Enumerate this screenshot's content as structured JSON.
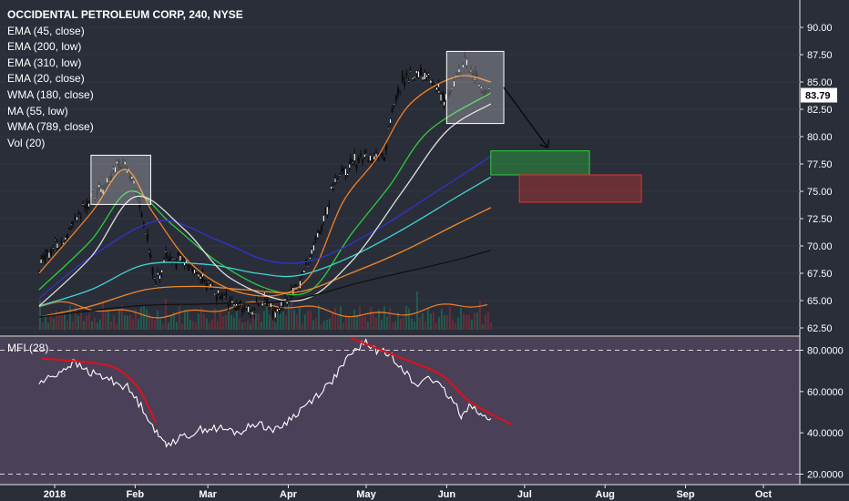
{
  "chart_data": [
    {
      "type": "candlestick",
      "title": "OCCIDENTAL PETROLEUM CORP, 240, NYSE",
      "indicators": [
        "EMA (45, close)",
        "EMA (200, low)",
        "EMA (310, low)",
        "EMA (20, close)",
        "WMA (180, close)",
        "MA (55, low)",
        "WMA (789, close)",
        "Vol (20)"
      ],
      "ylim": [
        62.5,
        92
      ],
      "yticks": [
        "90.00",
        "87.50",
        "85.00",
        "82.50",
        "80.00",
        "77.50",
        "75.00",
        "72.50",
        "70.00",
        "67.50",
        "65.00",
        "62.50"
      ],
      "last_price": "83.79",
      "x_labels": [
        "2018",
        "Feb",
        "Mar",
        "Apr",
        "May",
        "Jun",
        "Jul",
        "Aug",
        "Sep",
        "Oct"
      ],
      "price_path": [
        [
          "2017-12-26",
          68.3
        ],
        [
          "2018-01-02",
          70.2
        ],
        [
          "2018-01-08",
          72.0
        ],
        [
          "2018-01-15",
          74.5
        ],
        [
          "2018-01-22",
          76.0
        ],
        [
          "2018-01-25",
          77.8
        ],
        [
          "2018-01-30",
          76.8
        ],
        [
          "2018-02-02",
          74.5
        ],
        [
          "2018-02-05",
          71.5
        ],
        [
          "2018-02-07",
          69.0
        ],
        [
          "2018-02-09",
          66.5
        ],
        [
          "2018-02-13",
          69.0
        ],
        [
          "2018-02-20",
          68.5
        ],
        [
          "2018-02-27",
          67.0
        ],
        [
          "2018-03-05",
          65.5
        ],
        [
          "2018-03-12",
          64.5
        ],
        [
          "2018-03-19",
          64.0
        ],
        [
          "2018-03-23",
          65.5
        ],
        [
          "2018-03-27",
          63.5
        ],
        [
          "2018-03-30",
          65.3
        ],
        [
          "2018-04-04",
          66.0
        ],
        [
          "2018-04-10",
          69.5
        ],
        [
          "2018-04-16",
          73.5
        ],
        [
          "2018-04-20",
          76.5
        ],
        [
          "2018-04-25",
          77.5
        ],
        [
          "2018-05-01",
          78.0
        ],
        [
          "2018-05-08",
          78.0
        ],
        [
          "2018-05-11",
          82.5
        ],
        [
          "2018-05-15",
          85.0
        ],
        [
          "2018-05-22",
          85.8
        ],
        [
          "2018-05-29",
          84.5
        ],
        [
          "2018-05-31",
          83.0
        ],
        [
          "2018-06-05",
          85.5
        ],
        [
          "2018-06-08",
          86.8
        ],
        [
          "2018-06-12",
          85.5
        ],
        [
          "2018-06-15",
          84.0
        ],
        [
          "2018-06-18",
          83.79
        ]
      ],
      "series": [
        {
          "name": "EMA (45, close)",
          "color": "#2ecc40",
          "points": [
            [
              "2017-12-26",
              66.0
            ],
            [
              "2018-01-15",
              70.5
            ],
            [
              "2018-01-30",
              75.0
            ],
            [
              "2018-02-15",
              72.0
            ],
            [
              "2018-03-05",
              68.5
            ],
            [
              "2018-03-25",
              66.0
            ],
            [
              "2018-04-10",
              66.0
            ],
            [
              "2018-04-25",
              71.0
            ],
            [
              "2018-05-10",
              75.5
            ],
            [
              "2018-05-25",
              80.5
            ],
            [
              "2018-06-18",
              84.0
            ]
          ]
        },
        {
          "name": "EMA (200, low)",
          "color": "#ef8a2c",
          "points": [
            [
              "2017-12-26",
              63.5
            ],
            [
              "2018-01-15",
              64.5
            ],
            [
              "2018-02-05",
              66.0
            ],
            [
              "2018-02-25",
              66.3
            ],
            [
              "2018-03-15",
              66.0
            ],
            [
              "2018-04-05",
              65.8
            ],
            [
              "2018-04-25",
              67.5
            ],
            [
              "2018-05-15",
              69.5
            ],
            [
              "2018-06-05",
              72.0
            ],
            [
              "2018-06-18",
              73.5
            ]
          ]
        },
        {
          "name": "EMA (310, low)",
          "color": "#3fd6d2",
          "points": [
            [
              "2017-12-26",
              64.5
            ],
            [
              "2018-01-15",
              66.0
            ],
            [
              "2018-02-05",
              68.3
            ],
            [
              "2018-03-01",
              68.3
            ],
            [
              "2018-03-20",
              67.5
            ],
            [
              "2018-04-05",
              67.3
            ],
            [
              "2018-04-25",
              69.0
            ],
            [
              "2018-05-15",
              71.5
            ],
            [
              "2018-06-05",
              74.5
            ],
            [
              "2018-06-18",
              76.3
            ]
          ]
        },
        {
          "name": "EMA (20, close)",
          "color": "#f07f26",
          "points": [
            [
              "2017-12-26",
              67.5
            ],
            [
              "2018-01-15",
              73.0
            ],
            [
              "2018-01-28",
              77.0
            ],
            [
              "2018-02-08",
              73.0
            ],
            [
              "2018-02-22",
              68.5
            ],
            [
              "2018-03-10",
              66.0
            ],
            [
              "2018-03-28",
              65.5
            ],
            [
              "2018-04-10",
              67.5
            ],
            [
              "2018-04-22",
              74.0
            ],
            [
              "2018-05-05",
              78.0
            ],
            [
              "2018-05-18",
              83.0
            ],
            [
              "2018-06-05",
              85.5
            ],
            [
              "2018-06-18",
              85.0
            ]
          ]
        },
        {
          "name": "WMA (180, close)",
          "color": "#3333cc",
          "points": [
            [
              "2017-12-26",
              65.2
            ],
            [
              "2018-01-15",
              69.0
            ],
            [
              "2018-02-10",
              72.3
            ],
            [
              "2018-03-05",
              70.5
            ],
            [
              "2018-03-25",
              68.6
            ],
            [
              "2018-04-12",
              68.8
            ],
            [
              "2018-05-05",
              71.5
            ],
            [
              "2018-05-25",
              74.5
            ],
            [
              "2018-06-18",
              78.2
            ]
          ]
        },
        {
          "name": "MA (55, low)",
          "color": "#e0e0e0",
          "points": [
            [
              "2017-12-26",
              64.5
            ],
            [
              "2018-01-15",
              69.0
            ],
            [
              "2018-02-01",
              74.5
            ],
            [
              "2018-02-20",
              71.5
            ],
            [
              "2018-03-10",
              67.0
            ],
            [
              "2018-04-05",
              65.0
            ],
            [
              "2018-04-25",
              68.5
            ],
            [
              "2018-05-15",
              75.0
            ],
            [
              "2018-06-01",
              80.5
            ],
            [
              "2018-06-18",
              83.0
            ]
          ]
        },
        {
          "name": "WMA (789, close)",
          "color": "#111111",
          "points": [
            [
              "2017-12-26",
              63.5
            ],
            [
              "2018-02-01",
              64.5
            ],
            [
              "2018-03-01",
              64.7
            ],
            [
              "2018-04-01",
              65.0
            ],
            [
              "2018-05-01",
              66.8
            ],
            [
              "2018-06-01",
              68.5
            ],
            [
              "2018-06-18",
              69.6
            ]
          ]
        }
      ],
      "zones": [
        {
          "kind": "target",
          "color": "#2ecc40",
          "from": "2018-06-18",
          "to": "2018-07-26",
          "y": [
            76.5,
            78.7
          ]
        },
        {
          "kind": "stop",
          "color": "#e0332e",
          "from": "2018-06-29",
          "to": "2018-08-15",
          "y": [
            74.0,
            76.5
          ]
        }
      ]
    },
    {
      "type": "line",
      "title": "MFI (28)",
      "ylim": [
        17,
        87
      ],
      "yticks": [
        "80.0000",
        "60.0000",
        "40.0000",
        "20.0000"
      ],
      "dashed_levels": [
        80,
        20
      ],
      "points": [
        [
          "2017-12-26",
          64
        ],
        [
          "2018-01-01",
          68
        ],
        [
          "2018-01-08",
          74
        ],
        [
          "2018-01-15",
          69
        ],
        [
          "2018-01-22",
          66
        ],
        [
          "2018-01-29",
          62
        ],
        [
          "2018-02-05",
          50
        ],
        [
          "2018-02-10",
          38
        ],
        [
          "2018-02-13",
          35
        ],
        [
          "2018-02-20",
          38
        ],
        [
          "2018-02-27",
          42
        ],
        [
          "2018-03-06",
          42
        ],
        [
          "2018-03-13",
          40
        ],
        [
          "2018-03-20",
          45
        ],
        [
          "2018-03-27",
          41
        ],
        [
          "2018-04-03",
          48
        ],
        [
          "2018-04-10",
          56
        ],
        [
          "2018-04-17",
          64
        ],
        [
          "2018-04-24",
          76
        ],
        [
          "2018-04-30",
          84
        ],
        [
          "2018-05-05",
          80
        ],
        [
          "2018-05-10",
          78
        ],
        [
          "2018-05-15",
          72
        ],
        [
          "2018-05-20",
          62
        ],
        [
          "2018-05-25",
          68
        ],
        [
          "2018-05-31",
          60
        ],
        [
          "2018-06-04",
          54
        ],
        [
          "2018-06-07",
          48
        ],
        [
          "2018-06-10",
          55
        ],
        [
          "2018-06-14",
          48
        ],
        [
          "2018-06-18",
          47
        ]
      ],
      "trend_arcs": [
        {
          "color": "#e0101b",
          "points": [
            [
              "2017-12-27",
              76
            ],
            [
              "2018-01-15",
              74
            ],
            [
              "2018-01-25",
              71
            ],
            [
              "2018-02-02",
              62
            ],
            [
              "2018-02-09",
              45
            ]
          ]
        },
        {
          "color": "#e0101b",
          "points": [
            [
              "2018-04-25",
              86
            ],
            [
              "2018-05-15",
              76
            ],
            [
              "2018-05-30",
              68
            ],
            [
              "2018-06-10",
              55
            ],
            [
              "2018-06-26",
              44
            ]
          ]
        }
      ]
    }
  ]
}
